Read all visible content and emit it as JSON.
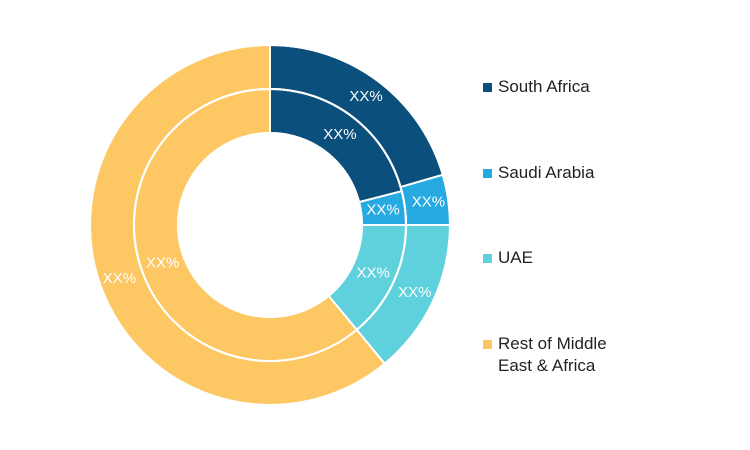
{
  "chart_data": {
    "type": "pie",
    "subtype": "double-ring-donut",
    "categories": [
      "South Africa",
      "Saudi Arabia",
      "UAE",
      "Rest of Middle East & Africa"
    ],
    "colors": [
      "#0b4f7d",
      "#27a9e1",
      "#5fd1dc",
      "#fdc763"
    ],
    "series": [
      {
        "ring": "outer",
        "values": [
          20.5,
          4.5,
          14.0,
          61.0
        ],
        "labels": [
          "XX%",
          "XX%",
          "XX%",
          "XX%"
        ]
      },
      {
        "ring": "inner",
        "values": [
          21.0,
          4.0,
          14.0,
          61.0
        ],
        "labels": [
          "XX%",
          "XX%",
          "XX%",
          "XX%"
        ]
      }
    ],
    "legend": {
      "position": "right",
      "items": [
        {
          "label": "South Africa",
          "color": "#0b4f7d"
        },
        {
          "label": "Saudi Arabia",
          "color": "#27a9e1"
        },
        {
          "label": "UAE",
          "color": "#5fd1dc"
        },
        {
          "label": "Rest of Middle\nEast & Africa",
          "color": "#fdc763"
        }
      ]
    }
  }
}
